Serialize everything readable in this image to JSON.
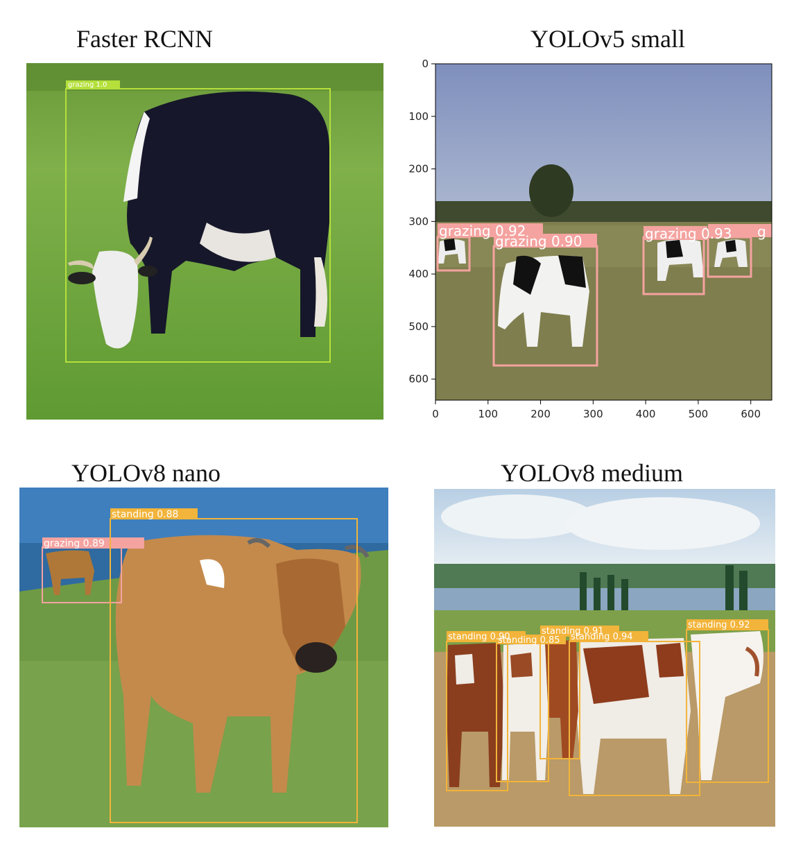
{
  "panels": [
    {
      "title": "Faster RCNN",
      "box_color": "#b5e03c",
      "detections": [
        {
          "label": "grazing 1.0"
        }
      ]
    },
    {
      "title": "YOLOv5 small",
      "box_color": "#f4a3a0",
      "x_ticks": [
        "0",
        "100",
        "200",
        "300",
        "400",
        "500",
        "600"
      ],
      "y_ticks": [
        "0",
        "100",
        "200",
        "300",
        "400",
        "500",
        "600"
      ],
      "detections": [
        {
          "label": "grazing 0.92"
        },
        {
          "label": "grazing 0.90"
        },
        {
          "label": "grazing 0.93"
        },
        {
          "label": "g"
        }
      ]
    },
    {
      "title": "YOLOv8 nano",
      "detections": [
        {
          "label": "grazing 0.89",
          "color": "#f4a3a0"
        },
        {
          "label": "standing 0.88",
          "color": "#f2b43a"
        }
      ]
    },
    {
      "title": "YOLOv8 medium",
      "box_color": "#f2b43a",
      "detections": [
        {
          "label": "standing 0.90"
        },
        {
          "label": "standing 0.91"
        },
        {
          "label": "standing 0.85"
        },
        {
          "label": "standing 0.94"
        },
        {
          "label": "standing 0.92"
        }
      ]
    }
  ]
}
